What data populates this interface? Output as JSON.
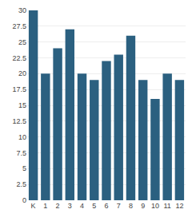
{
  "chart_data": {
    "type": "bar",
    "categories": [
      "K",
      "1",
      "2",
      "3",
      "4",
      "5",
      "6",
      "7",
      "8",
      "9",
      "10",
      "11",
      "12"
    ],
    "values": [
      30,
      20,
      24,
      27,
      20,
      19,
      22,
      23,
      26,
      19,
      16,
      20,
      19
    ],
    "color": "#2b6080",
    "ylim": [
      0,
      30
    ],
    "yticks": [
      0,
      2.5,
      5,
      7.5,
      10,
      12.5,
      15,
      17.5,
      20,
      22.5,
      25,
      27.5,
      30
    ],
    "grid": true
  }
}
